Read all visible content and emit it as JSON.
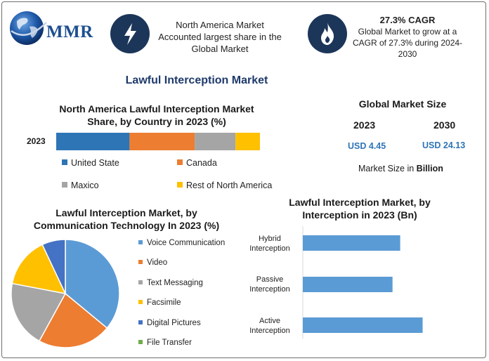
{
  "brand": {
    "logo_text": "MMR",
    "colors": {
      "navy": "#1c3659",
      "logo_blue": "#1d4f8f",
      "accent_blue": "#2e75b6"
    }
  },
  "header": {
    "info1_icon": "lightning-bolt-icon",
    "info1_text": "North America Market Accounted largest share in the Global Market",
    "info2_icon": "flame-icon",
    "info2_title": "27.3% CAGR",
    "info2_text": "Global Market to grow at a CAGR of 27.3% during 2024-2030"
  },
  "main_title": "Lawful Interception Market",
  "market_size": {
    "title": "Global Market Size",
    "year1": "2023",
    "year2": "2030",
    "value1": "USD 4.45",
    "value2": "USD 24.13",
    "note_prefix": "Market Size in ",
    "note_unit": "Billion"
  },
  "chart_data": [
    {
      "type": "bar",
      "orientation": "horizontal-stacked",
      "title": "North America Lawful Interception Market Share, by Country in 2023 (%)",
      "categories": [
        "2023"
      ],
      "series": [
        {
          "name": "United State",
          "values": [
            36
          ],
          "color": "#2e75b6"
        },
        {
          "name": "Canada",
          "values": [
            32
          ],
          "color": "#ed7d31"
        },
        {
          "name": "Maxico",
          "values": [
            20
          ],
          "color": "#a5a5a5"
        },
        {
          "name": "Rest of North America",
          "values": [
            12
          ],
          "color": "#ffc000"
        }
      ],
      "legend": "bottom"
    },
    {
      "type": "pie",
      "title": "Lawful Interception Market, by Communication Technology In 2023 (%)",
      "labels": [
        "Voice Communication",
        "Video",
        "Text Messaging",
        "Facsimile",
        "Digital Pictures",
        "File Transfer"
      ],
      "values": [
        36,
        22,
        20,
        15,
        7,
        0
      ],
      "colors": [
        "#5b9bd5",
        "#ed7d31",
        "#a5a5a5",
        "#ffc000",
        "#4472c4",
        "#70ad47"
      ],
      "legend": "right"
    },
    {
      "type": "bar",
      "orientation": "horizontal",
      "title": "Lawful Interception Market, by Interception  in 2023 (Bn)",
      "categories": [
        "Hybrid Interception",
        "Passive Interception",
        "Active Interception"
      ],
      "values": [
        1.65,
        1.52,
        2.03
      ],
      "xlim": [
        0,
        2.5
      ],
      "color": "#5b9bd5"
    }
  ]
}
